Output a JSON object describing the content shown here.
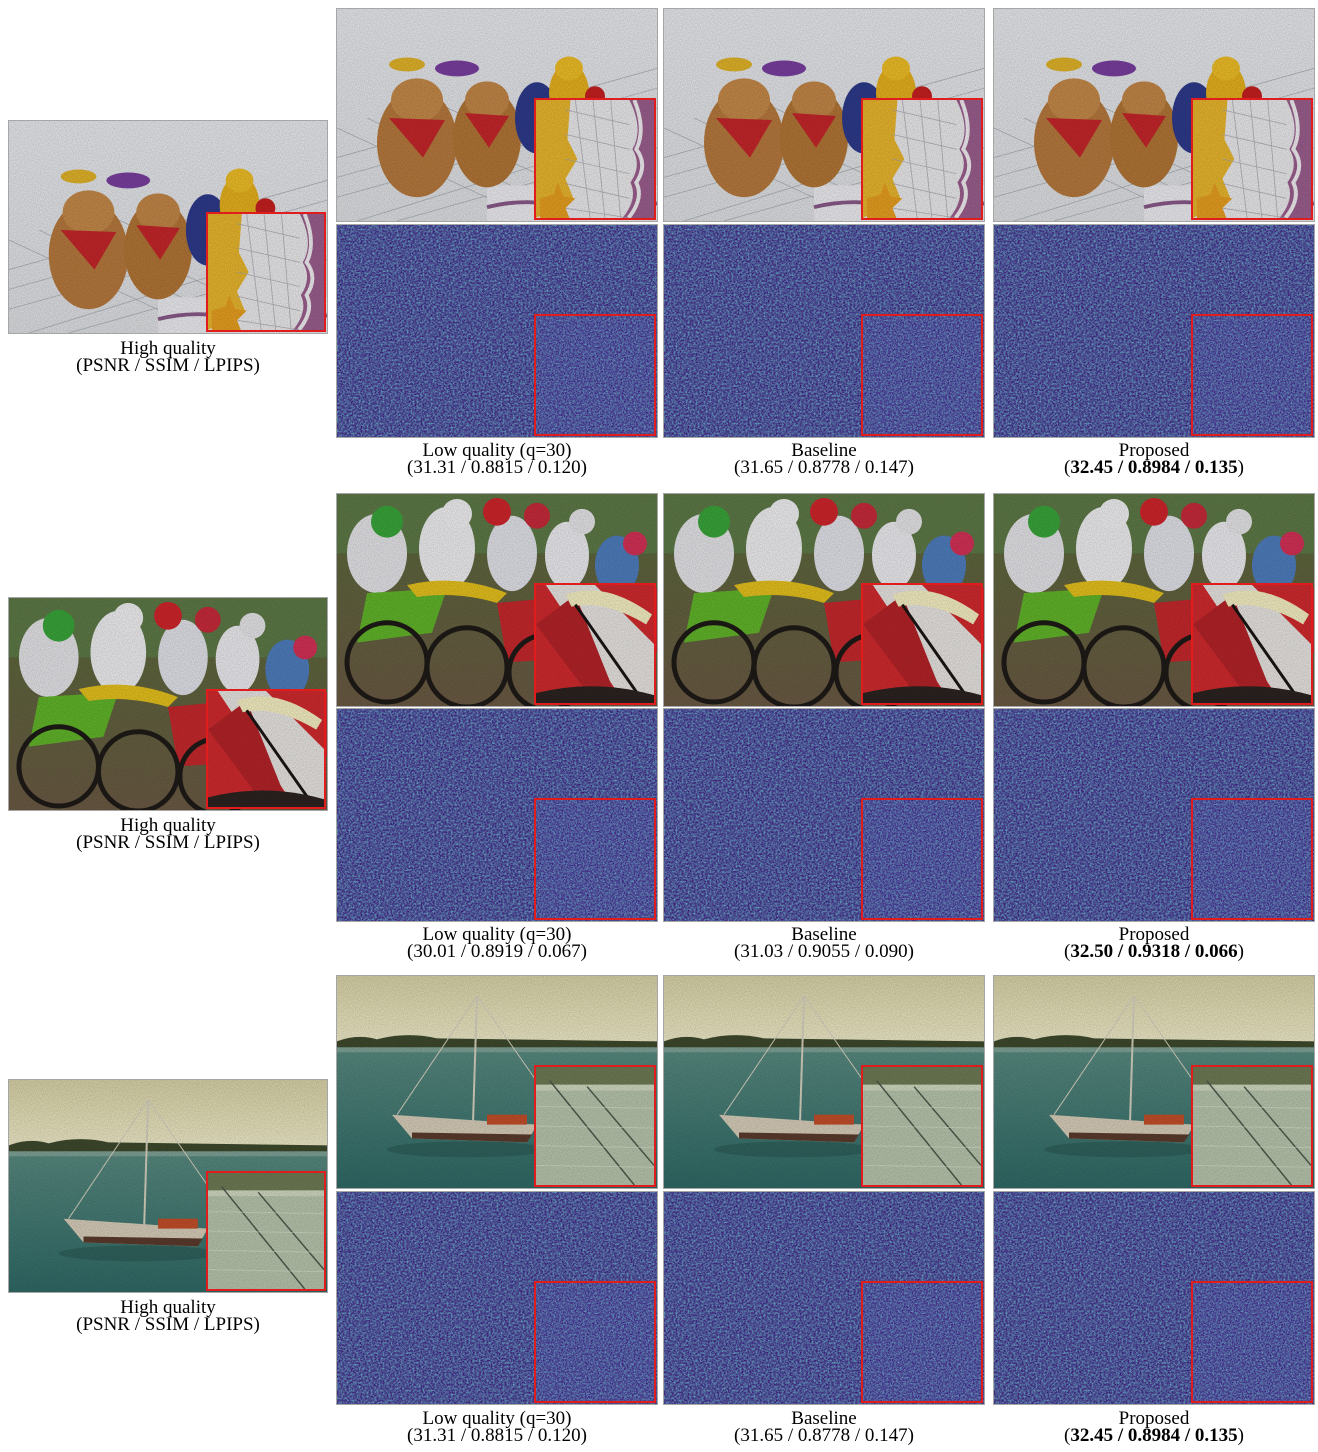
{
  "figure": {
    "rows": [
      {
        "id": "toys",
        "reference": {
          "label": "High quality",
          "metrics": "(PSNR / SSIM / LPIPS)"
        },
        "columns": [
          {
            "label": "Low quality (q=30)",
            "metrics": "(31.31 / 0.8815 / 0.120)",
            "best": false
          },
          {
            "label": "Baseline",
            "metrics": "(31.65 / 0.8778 / 0.147)",
            "best": false
          },
          {
            "label": "Proposed",
            "metrics": "32.45 / 0.8984 / 0.135",
            "best": true
          }
        ]
      },
      {
        "id": "motocross",
        "reference": {
          "label": "High quality",
          "metrics": "(PSNR / SSIM / LPIPS)"
        },
        "columns": [
          {
            "label": "Low quality (q=30)",
            "metrics": "(30.01 / 0.8919 / 0.067)",
            "best": false
          },
          {
            "label": "Baseline",
            "metrics": "(31.03 / 0.9055 / 0.090)",
            "best": false
          },
          {
            "label": "Proposed",
            "metrics": "32.50 / 0.9318 / 0.066",
            "best": true
          }
        ]
      },
      {
        "id": "sailboat",
        "reference": {
          "label": "High quality",
          "metrics": "(PSNR / SSIM / LPIPS)"
        },
        "columns": [
          {
            "label": "Low quality (q=30)",
            "metrics": "(31.31 / 0.8815 / 0.120)",
            "best": false
          },
          {
            "label": "Baseline",
            "metrics": "(31.65 / 0.8778 / 0.147)",
            "best": false
          },
          {
            "label": "Proposed",
            "metrics": "32.45 / 0.8984 / 0.135",
            "best": true
          }
        ]
      }
    ],
    "colors": {
      "zoom_box": "#e01c1c",
      "error_map_dark": "#3b0f6f",
      "error_map_mid": "#2a7b8e",
      "error_map_bright": "#36c5a0"
    }
  }
}
